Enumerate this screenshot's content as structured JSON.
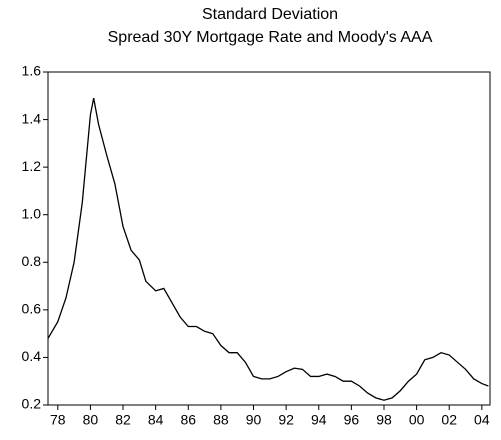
{
  "chart_data": {
    "type": "line",
    "title": "Standard Deviation",
    "subtitle": "Spread 30Y Mortgage Rate and Moody's AAA",
    "x": [
      1977.4,
      1978,
      1978.5,
      1979,
      1979.5,
      1980,
      1980.2,
      1980.5,
      1981,
      1981.5,
      1982,
      1982.5,
      1983,
      1983.4,
      1984,
      1984.5,
      1985,
      1985.5,
      1986,
      1986.5,
      1987,
      1987.5,
      1988,
      1988.5,
      1989,
      1989.5,
      1990,
      1990.5,
      1991,
      1991.5,
      1992,
      1992.5,
      1993,
      1993.5,
      1994,
      1994.5,
      1995,
      1995.5,
      1996,
      1996.5,
      1997,
      1997.5,
      1998,
      1998.5,
      1999,
      1999.5,
      2000,
      2000.5,
      2001,
      2001.5,
      2002,
      2002.5,
      2003,
      2003.5,
      2004,
      2004.4
    ],
    "series": [
      {
        "color": "#000000",
        "values": [
          0.48,
          0.55,
          0.65,
          0.8,
          1.05,
          1.42,
          1.49,
          1.38,
          1.25,
          1.13,
          0.95,
          0.85,
          0.81,
          0.72,
          0.68,
          0.69,
          0.63,
          0.57,
          0.53,
          0.53,
          0.51,
          0.5,
          0.45,
          0.42,
          0.42,
          0.38,
          0.32,
          0.31,
          0.31,
          0.32,
          0.34,
          0.355,
          0.35,
          0.32,
          0.32,
          0.33,
          0.32,
          0.3,
          0.3,
          0.28,
          0.25,
          0.23,
          0.22,
          0.23,
          0.26,
          0.3,
          0.33,
          0.39,
          0.4,
          0.42,
          0.41,
          0.38,
          0.35,
          0.31,
          0.29,
          0.28
        ]
      }
    ],
    "xlim": [
      1977.4,
      2004.5
    ],
    "xticks": [
      {
        "value": 1978,
        "label": "78"
      },
      {
        "value": 1980,
        "label": "80"
      },
      {
        "value": 1982,
        "label": "82"
      },
      {
        "value": 1984,
        "label": "84"
      },
      {
        "value": 1986,
        "label": "86"
      },
      {
        "value": 1988,
        "label": "88"
      },
      {
        "value": 1990,
        "label": "90"
      },
      {
        "value": 1992,
        "label": "92"
      },
      {
        "value": 1994,
        "label": "94"
      },
      {
        "value": 1996,
        "label": "96"
      },
      {
        "value": 1998,
        "label": "98"
      },
      {
        "value": 2000,
        "label": "00"
      },
      {
        "value": 2002,
        "label": "02"
      },
      {
        "value": 2004,
        "label": "04"
      }
    ],
    "ylim": [
      0.2,
      1.6
    ],
    "yticks": [
      0.2,
      0.4,
      0.6,
      0.8,
      {
        "value": 1,
        "label": "1.0"
      },
      1.2,
      1.4,
      1.6
    ]
  }
}
